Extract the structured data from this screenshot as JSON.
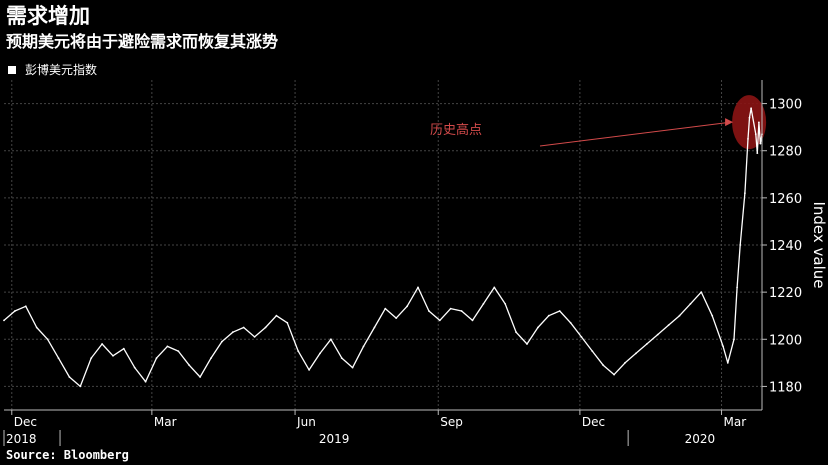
{
  "header": {
    "title": "需求增加",
    "subtitle": "预期美元将由于避险需求而恢复其涨势"
  },
  "legend": {
    "label": "彭博美元指数"
  },
  "source": "Source: Bloomberg",
  "colors": {
    "background": "#000000",
    "series": "#ffffff",
    "grid": "#444444",
    "annotation": "#d24a4a",
    "highlight": "#8b1414"
  },
  "chart_data": {
    "type": "line",
    "ylabel": "Index value",
    "ylim": [
      1170,
      1310
    ],
    "yticks": [
      1180,
      1200,
      1220,
      1240,
      1260,
      1280,
      1300
    ],
    "grid": true,
    "y_axis_side": "right",
    "x_range": [
      "2018-11-26",
      "2020-03-27"
    ],
    "month_ticks": [
      {
        "label": "Dec",
        "date": "2018-12-01"
      },
      {
        "label": "Mar",
        "date": "2019-03-01"
      },
      {
        "label": "Jun",
        "date": "2019-06-01"
      },
      {
        "label": "Sep",
        "date": "2019-09-01"
      },
      {
        "label": "Dec",
        "date": "2019-12-01"
      },
      {
        "label": "Mar",
        "date": "2020-03-01"
      }
    ],
    "year_ticks": [
      {
        "label": "2018",
        "date": "2018-11-26"
      },
      {
        "label": "2019",
        "date": "2019-06-15"
      },
      {
        "label": "2020",
        "date": "2020-02-05"
      }
    ],
    "series": [
      {
        "points": [
          [
            "2018-11-26",
            1208
          ],
          [
            "2018-12-03",
            1212
          ],
          [
            "2018-12-10",
            1214
          ],
          [
            "2018-12-17",
            1205
          ],
          [
            "2018-12-24",
            1200
          ],
          [
            "2018-12-31",
            1192
          ],
          [
            "2019-01-07",
            1184
          ],
          [
            "2019-01-14",
            1180
          ],
          [
            "2019-01-21",
            1192
          ],
          [
            "2019-01-28",
            1198
          ],
          [
            "2019-02-04",
            1193
          ],
          [
            "2019-02-11",
            1196
          ],
          [
            "2019-02-18",
            1188
          ],
          [
            "2019-02-25",
            1182
          ],
          [
            "2019-03-04",
            1192
          ],
          [
            "2019-03-11",
            1197
          ],
          [
            "2019-03-18",
            1195
          ],
          [
            "2019-03-25",
            1189
          ],
          [
            "2019-04-01",
            1184
          ],
          [
            "2019-04-08",
            1192
          ],
          [
            "2019-04-15",
            1199
          ],
          [
            "2019-04-22",
            1203
          ],
          [
            "2019-04-29",
            1205
          ],
          [
            "2019-05-06",
            1201
          ],
          [
            "2019-05-13",
            1205
          ],
          [
            "2019-05-20",
            1210
          ],
          [
            "2019-05-27",
            1207
          ],
          [
            "2019-06-03",
            1195
          ],
          [
            "2019-06-10",
            1187
          ],
          [
            "2019-06-17",
            1194
          ],
          [
            "2019-06-24",
            1200
          ],
          [
            "2019-07-01",
            1192
          ],
          [
            "2019-07-08",
            1188
          ],
          [
            "2019-07-15",
            1197
          ],
          [
            "2019-07-22",
            1205
          ],
          [
            "2019-07-29",
            1213
          ],
          [
            "2019-08-05",
            1209
          ],
          [
            "2019-08-12",
            1214
          ],
          [
            "2019-08-19",
            1222
          ],
          [
            "2019-08-26",
            1212
          ],
          [
            "2019-09-02",
            1208
          ],
          [
            "2019-09-09",
            1213
          ],
          [
            "2019-09-16",
            1212
          ],
          [
            "2019-09-23",
            1208
          ],
          [
            "2019-09-30",
            1215
          ],
          [
            "2019-10-07",
            1222
          ],
          [
            "2019-10-14",
            1215
          ],
          [
            "2019-10-21",
            1203
          ],
          [
            "2019-10-28",
            1198
          ],
          [
            "2019-11-04",
            1205
          ],
          [
            "2019-11-11",
            1210
          ],
          [
            "2019-11-18",
            1212
          ],
          [
            "2019-11-25",
            1207
          ],
          [
            "2019-12-02",
            1201
          ],
          [
            "2019-12-09",
            1195
          ],
          [
            "2019-12-16",
            1189
          ],
          [
            "2019-12-23",
            1185
          ],
          [
            "2019-12-30",
            1190
          ],
          [
            "2020-01-06",
            1194
          ],
          [
            "2020-01-13",
            1198
          ],
          [
            "2020-01-20",
            1202
          ],
          [
            "2020-01-27",
            1206
          ],
          [
            "2020-02-03",
            1210
          ],
          [
            "2020-02-10",
            1215
          ],
          [
            "2020-02-17",
            1220
          ],
          [
            "2020-02-24",
            1210
          ],
          [
            "2020-03-02",
            1197
          ],
          [
            "2020-03-05",
            1190
          ],
          [
            "2020-03-09",
            1200
          ],
          [
            "2020-03-11",
            1222
          ],
          [
            "2020-03-13",
            1240
          ],
          [
            "2020-03-16",
            1262
          ],
          [
            "2020-03-18",
            1285
          ],
          [
            "2020-03-19",
            1294
          ],
          [
            "2020-03-20",
            1298
          ],
          [
            "2020-03-23",
            1287
          ],
          [
            "2020-03-24",
            1279
          ],
          [
            "2020-03-25",
            1292
          ],
          [
            "2020-03-26",
            1283
          ],
          [
            "2020-03-27",
            1287
          ]
        ]
      }
    ],
    "annotations": [
      {
        "text": "历史高点",
        "date": "2020-03-20",
        "value": 1290
      }
    ]
  }
}
